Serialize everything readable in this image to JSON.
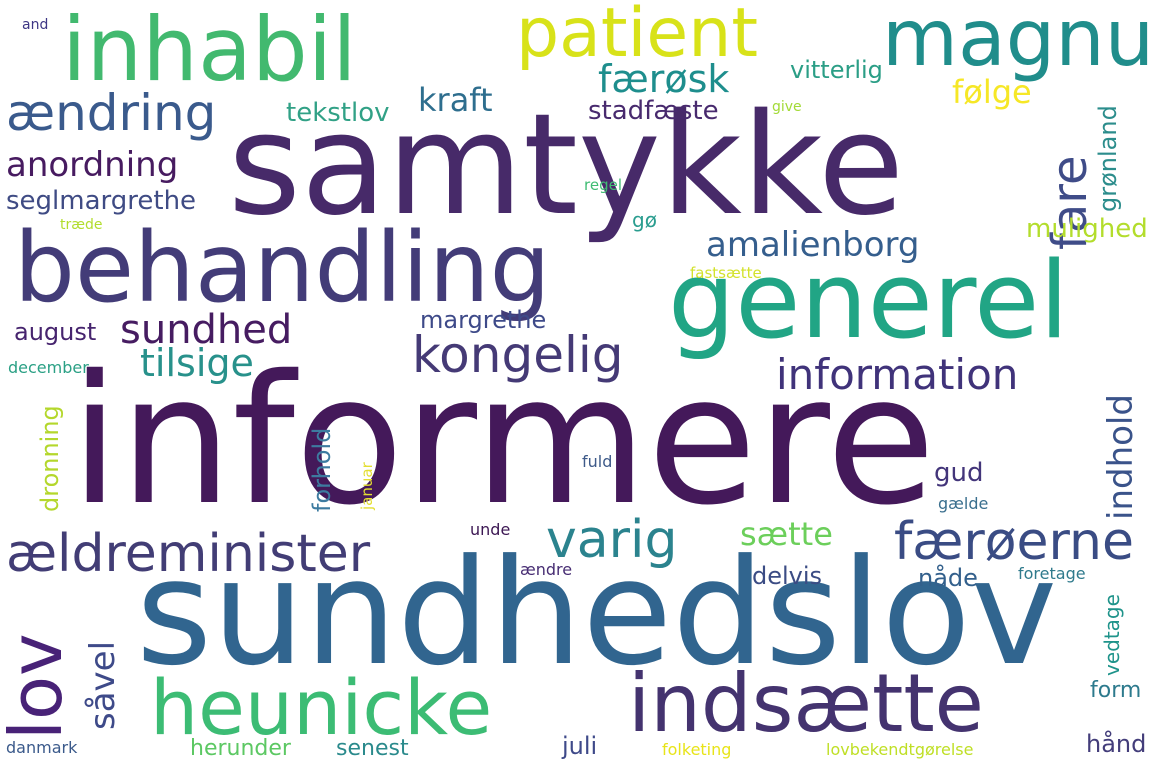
{
  "words": [
    {
      "text": "informere",
      "color": "#44195a"
    },
    {
      "text": "samtykke",
      "color": "#472a69"
    },
    {
      "text": "sundhedslov",
      "color": "#31658f"
    },
    {
      "text": "behandling",
      "color": "#433c78"
    },
    {
      "text": "generel",
      "color": "#21a585"
    },
    {
      "text": "inhabil",
      "color": "#42b96f"
    },
    {
      "text": "patient",
      "color": "#d8e219"
    },
    {
      "text": "magnu",
      "color": "#208d8b"
    },
    {
      "text": "heunicke",
      "color": "#3cbc74"
    },
    {
      "text": "indsætte",
      "color": "#44336f"
    },
    {
      "text": "ændring",
      "color": "#3a5a8c"
    },
    {
      "text": "kongelig",
      "color": "#453a76"
    },
    {
      "text": "ældreminister",
      "color": "#423d75"
    },
    {
      "text": "færøerne",
      "color": "#3a4c84"
    },
    {
      "text": "lov",
      "color": "#482277"
    },
    {
      "text": "varig",
      "color": "#2b838e"
    },
    {
      "text": "information",
      "color": "#40337a"
    },
    {
      "text": "anordning",
      "color": "#471b60"
    },
    {
      "text": "amalienborg",
      "color": "#355e8d"
    },
    {
      "text": "sundhed",
      "color": "#461c61"
    },
    {
      "text": "tilsige",
      "color": "#28918b"
    },
    {
      "text": "færøsk",
      "color": "#1e8e8d"
    },
    {
      "text": "kraft",
      "color": "#2e6e8e"
    },
    {
      "text": "fare",
      "color": "#3f4c88"
    },
    {
      "text": "følge",
      "color": "#f6e726"
    },
    {
      "text": "vitterlig",
      "color": "#2b9e86"
    },
    {
      "text": "stadfæste",
      "color": "#482a6e"
    },
    {
      "text": "tekstlov",
      "color": "#31a186"
    },
    {
      "text": "seglmargrethe",
      "color": "#3f4b84"
    },
    {
      "text": "mulighed",
      "color": "#b3dd2c"
    },
    {
      "text": "grønland",
      "color": "#2c8d8c"
    },
    {
      "text": "indhold",
      "color": "#3a538a"
    },
    {
      "text": "margrethe",
      "color": "#3e4a89"
    },
    {
      "text": "august",
      "color": "#46246e"
    },
    {
      "text": "december",
      "color": "#2ba085"
    },
    {
      "text": "dronning",
      "color": "#b4d72c"
    },
    {
      "text": "forhold",
      "color": "#3d7ba0"
    },
    {
      "text": "januar",
      "color": "#e3de32"
    },
    {
      "text": "sætte",
      "color": "#6ccf5b"
    },
    {
      "text": "gud",
      "color": "#43357a"
    },
    {
      "text": "gælde",
      "color": "#3a6f8e"
    },
    {
      "text": "fuld",
      "color": "#3e5a89"
    },
    {
      "text": "unde",
      "color": "#3c1753"
    },
    {
      "text": "ændre",
      "color": "#472d73"
    },
    {
      "text": "nåde",
      "color": "#33608c"
    },
    {
      "text": "delvis",
      "color": "#3b4c84"
    },
    {
      "text": "foretage",
      "color": "#2f7a8c"
    },
    {
      "text": "såvel",
      "color": "#3e4a89"
    },
    {
      "text": "vedtage",
      "color": "#1e938a"
    },
    {
      "text": "form",
      "color": "#2d7a8d"
    },
    {
      "text": "hånd",
      "color": "#433d7a"
    },
    {
      "text": "herunder",
      "color": "#5cc863"
    },
    {
      "text": "senest",
      "color": "#2a8a8c"
    },
    {
      "text": "juli",
      "color": "#3e4989"
    },
    {
      "text": "folketing",
      "color": "#e8e419"
    },
    {
      "text": "lovbekendtgørelse",
      "color": "#bfdf25"
    },
    {
      "text": "danmark",
      "color": "#3b5a8b"
    },
    {
      "text": "and",
      "color": "#3e3785"
    },
    {
      "text": "give",
      "color": "#a3da37"
    },
    {
      "text": "regel",
      "color": "#3fbc73"
    },
    {
      "text": "træde",
      "color": "#b2dd2d"
    },
    {
      "text": "gø",
      "color": "#2a9d8f"
    },
    {
      "text": "fastsætte",
      "color": "#d3e22c"
    }
  ]
}
